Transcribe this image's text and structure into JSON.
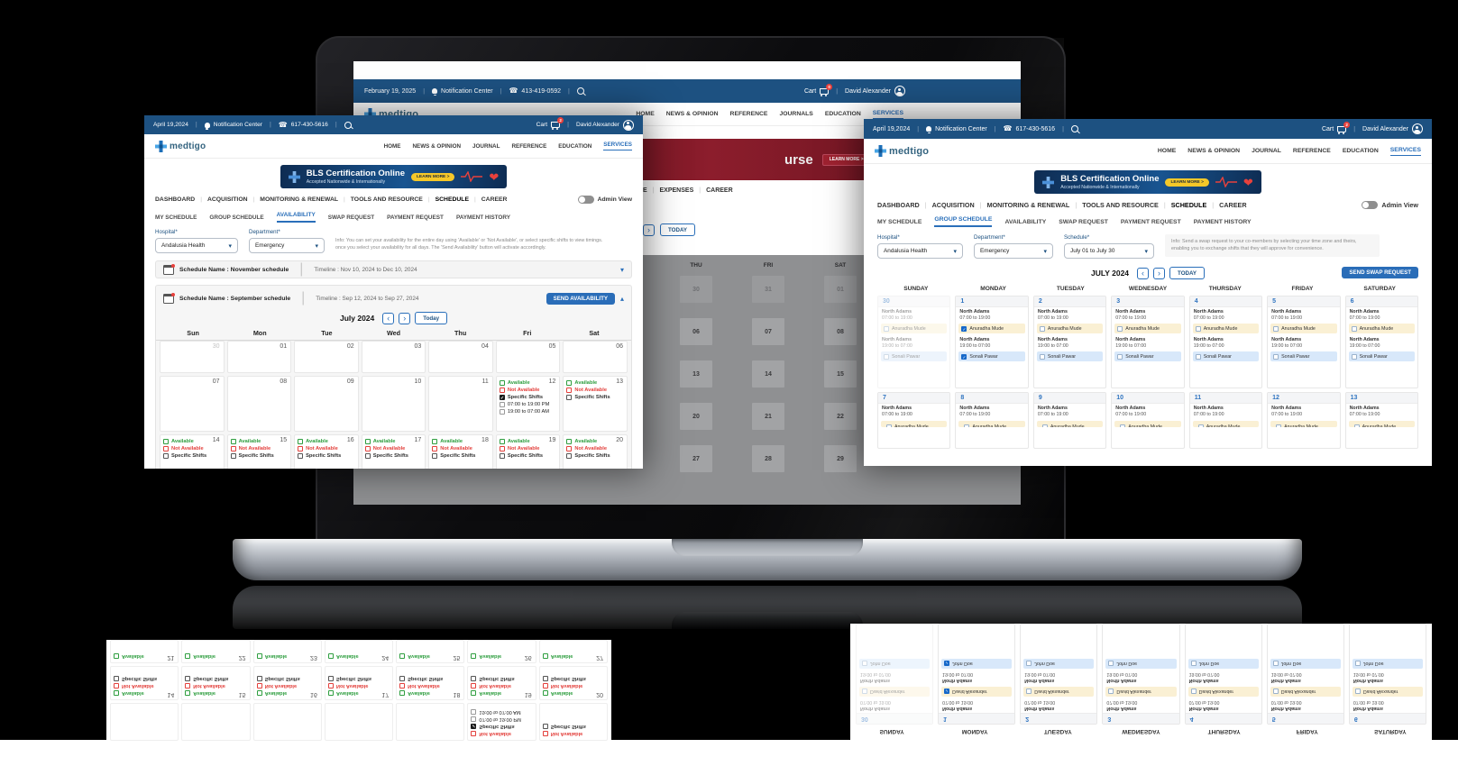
{
  "brand": "medtigo",
  "icons": {
    "bell": "bell-icon",
    "phone": "☎",
    "search": "magnifier",
    "cart": "cart-icon",
    "user": "avatar",
    "heart": "❤",
    "calendar": "calendar-icon",
    "chevron_down": "▾",
    "chevron_up": "▴",
    "prev": "‹",
    "next": "›",
    "check": "✓"
  },
  "colors": {
    "navy_bar": "#1d5181",
    "accent_blue": "#2a6fba",
    "button_blue": "#2a6db8",
    "available_green": "#2e9e3f",
    "not_available_red": "#e3403c",
    "yellow_row": "#faf0d4",
    "blue_row": "#d8e8fa",
    "checked_blue": "#1668c9",
    "banner_navy": "#0e2c52",
    "banner_maroon": "#8c1d2c",
    "cta_yellow": "#f5c829"
  },
  "background_screen": {
    "topbar": {
      "date": "February 19, 2025",
      "notification": "Notification Center",
      "phone": "413-419-0592",
      "cart": "Cart",
      "cart_badge": "0",
      "user": "David Alexander"
    },
    "nav": [
      "HOME",
      "NEWS & OPINION",
      "REFERENCE",
      "JOURNALS",
      "EDUCATION",
      "SERVICES"
    ],
    "banner_fragment": "urse",
    "banner_cta": "LEARN MORE  >",
    "tabs": [
      "E",
      "EXPENSES",
      "CAREER"
    ],
    "next_label": "›",
    "today_label": "TODAY",
    "weekdays": [
      "THU",
      "FRI",
      "SAT"
    ],
    "date_rows": [
      {
        "muted": true,
        "cells": [
          "30",
          "31",
          "01"
        ]
      },
      {
        "muted": false,
        "cells": [
          "06",
          "07",
          "08"
        ]
      },
      {
        "muted": false,
        "cells": [
          "13",
          "14",
          "15"
        ]
      },
      {
        "muted": false,
        "cells": [
          "20",
          "21",
          "22"
        ]
      },
      {
        "muted": false,
        "cells": [
          "27",
          "28",
          "29"
        ]
      }
    ]
  },
  "left_panel": {
    "topbar": {
      "date": "April 19,2024",
      "notification": "Notification Center",
      "phone": "617-430-5616",
      "cart": "Cart",
      "cart_badge": "2",
      "user": "David Alexander"
    },
    "nav": [
      "HOME",
      "NEWS & OPINION",
      "JOURNAL",
      "REFERENCE",
      "EDUCATION",
      "SERVICES"
    ],
    "bls": {
      "title": "BLS Certification Online",
      "subtitle": "Accepted Nationwide & Internationally",
      "cta": "LEARN MORE  >"
    },
    "tabs": [
      "DASHBOARD",
      "ACQUISITION",
      "MONITORING  & RENEWAL",
      "TOOLS AND RESOURCE",
      "SCHEDULE",
      "CAREER"
    ],
    "bold_tab": "SCHEDULE",
    "admin_view": "Admin View",
    "subtabs": [
      "MY SCHEDULE",
      "GROUP SCHEDULE",
      "AVAILABILITY",
      "SWAP REQUEST",
      "PAYMENT REQUEST",
      "PAYMENT HISTORY"
    ],
    "active_subtab": "AVAILABILITY",
    "hospital_label": "Hospital*",
    "hospital_value": "Andalusia Health",
    "department_label": "Department*",
    "department_value": "Emergency",
    "info": "Info: You can set your availability for the entire day using 'Available' or 'Not Available', or select specific shifts to view timings. once you select your availability for all days. The 'Send Availability' button will activate accordingly.",
    "accordion_collapsed": {
      "name": "Schedule Name : November schedule",
      "timeline": "Timeline : Nov 10, 2024 to Dec 10, 2024"
    },
    "accordion_expanded": {
      "name": "Schedule Name : September schedule",
      "timeline": "Timeline : Sep 12, 2024 to Sep 27, 2024",
      "button": "SEND AVAILABILITY"
    },
    "calendar": {
      "month": "July 2024",
      "today": "Today",
      "weekdays": [
        "Sun",
        "Mon",
        "Tue",
        "Wed",
        "Thu",
        "Fri",
        "Sat"
      ],
      "week1": [
        {
          "d": "30",
          "muted": true
        },
        {
          "d": "01"
        },
        {
          "d": "02"
        },
        {
          "d": "03"
        },
        {
          "d": "04"
        },
        {
          "d": "05"
        },
        {
          "d": "06"
        }
      ],
      "week2": [
        {
          "d": "07"
        },
        {
          "d": "08"
        },
        {
          "d": "09"
        },
        {
          "d": "10"
        },
        {
          "d": "11"
        },
        {
          "d": "12",
          "options": [
            {
              "label": "Available",
              "type": "green"
            },
            {
              "label": "Not Available",
              "type": "red"
            },
            {
              "label": "Specific Shifts",
              "type": "dark",
              "checked": true
            },
            {
              "label": "07:00 to 19:00 PM",
              "type": "time"
            },
            {
              "label": "19:00 to 07:00 AM",
              "type": "time"
            }
          ]
        },
        {
          "d": "13",
          "options": [
            {
              "label": "Available",
              "type": "green"
            },
            {
              "label": "Not Available",
              "type": "red"
            },
            {
              "label": "Specific Shifts",
              "type": "dark"
            }
          ]
        }
      ],
      "week3_days": [
        "14",
        "15",
        "16",
        "17",
        "18",
        "19",
        "20"
      ],
      "standard_options": [
        {
          "label": "Available",
          "type": "green"
        },
        {
          "label": "Not Available",
          "type": "red"
        },
        {
          "label": "Specific Shifts",
          "type": "dark"
        }
      ]
    }
  },
  "right_panel": {
    "topbar": {
      "date": "April 19,2024",
      "notification": "Notification Center",
      "phone": "617-430-5616",
      "cart": "Cart",
      "cart_badge": "2",
      "user": "David Alexander"
    },
    "nav": [
      "HOME",
      "NEWS & OPINION",
      "JOURNAL",
      "REFERENCE",
      "EDUCATION",
      "SERVICES"
    ],
    "bls": {
      "title": "BLS Certification Online",
      "subtitle": "Accepted Nationwide & Internationally",
      "cta": "LEARN MORE  >"
    },
    "tabs": [
      "DASHBOARD",
      "ACQUISITION",
      "MONITORING  & RENEWAL",
      "TOOLS AND RESOURCE",
      "SCHEDULE",
      "CAREER"
    ],
    "bold_tab": "SCHEDULE",
    "admin_view": "Admin View",
    "subtabs": [
      "MY SCHEDULE",
      "GROUP SCHEDULE",
      "AVAILABILITY",
      "SWAP REQUEST",
      "PAYMENT REQUEST",
      "PAYMENT HISTORY"
    ],
    "active_subtab": "GROUP SCHEDULE",
    "hospital_label": "Hospital*",
    "hospital_value": "Andalusia Health",
    "department_label": "Department*",
    "department_value": "Emergency",
    "schedule_label": "Schedule*",
    "schedule_value": "July 01 to July 30",
    "info": "Info: Send a swap request to your co-members by selecting your time zone and theirs, enabling you to exchange shifts that they will approve for convenience.",
    "month": "JULY 2024",
    "today": "TODAY",
    "swap_button": "SEND SWAP REQUEST",
    "weekdays": [
      "SUNDAY",
      "MONDAY",
      "TUESDAY",
      "WEDNESDAY",
      "THURSDAY",
      "FRIDAY",
      "SATURDAY"
    ],
    "shift1": {
      "site": "North Adams",
      "time": "07:00 to 19:00"
    },
    "shift2": {
      "site": "North Adams",
      "time": "19:00 to 07:00"
    },
    "person1": "Anuradha Mude",
    "person2": "Sonali Pawar",
    "week1": [
      {
        "d": "30",
        "muted": true
      },
      {
        "d": "1",
        "checked1": true,
        "checked2": true
      },
      {
        "d": "2"
      },
      {
        "d": "3"
      },
      {
        "d": "4"
      },
      {
        "d": "5"
      },
      {
        "d": "6"
      }
    ],
    "week2_days": [
      "7",
      "8",
      "9",
      "10",
      "11",
      "12",
      "13"
    ]
  },
  "reflections": {
    "left": {
      "day12_lines": [
        {
          "label": "Not Available",
          "type": "red"
        },
        {
          "label": "Specific Shifts",
          "type": "dark",
          "checked": true
        },
        {
          "label": "07:00 to 19:00 PM",
          "type": "time"
        },
        {
          "label": "19:00 to 07:00 AM",
          "type": "time"
        }
      ],
      "day13_lines": [
        {
          "label": "Not Available",
          "type": "red"
        },
        {
          "label": "Specific Shifts",
          "type": "dark"
        }
      ],
      "week3_days": [
        "14",
        "15",
        "16",
        "17",
        "18",
        "19",
        "20"
      ],
      "week4_days": [
        "21",
        "22",
        "23",
        "24",
        "25",
        "26",
        "27"
      ],
      "available_label": "Available",
      "standard_options": [
        {
          "label": "Available",
          "type": "green"
        },
        {
          "label": "Not Available",
          "type": "red"
        },
        {
          "label": "Specific Shifts",
          "type": "dark"
        }
      ]
    },
    "right": {
      "weekdays": [
        "SUNDAY",
        "MONDAY",
        "TUESDAY",
        "WEDNESDAY",
        "THURSDAY",
        "FRIDAY",
        "SATURDAY"
      ],
      "shift1": {
        "site": "North Adams",
        "time": "07:00 to 19:00"
      },
      "shift2": {
        "site": "North Adams",
        "time": "19:00 to 07:00"
      },
      "person1": "David Alexander",
      "person2": "John Doe",
      "week": [
        {
          "d": "30",
          "muted": true
        },
        {
          "d": "1",
          "checked1": true,
          "checked2": true
        },
        {
          "d": "2"
        },
        {
          "d": "3"
        },
        {
          "d": "4"
        },
        {
          "d": "5"
        },
        {
          "d": "6"
        }
      ]
    }
  }
}
